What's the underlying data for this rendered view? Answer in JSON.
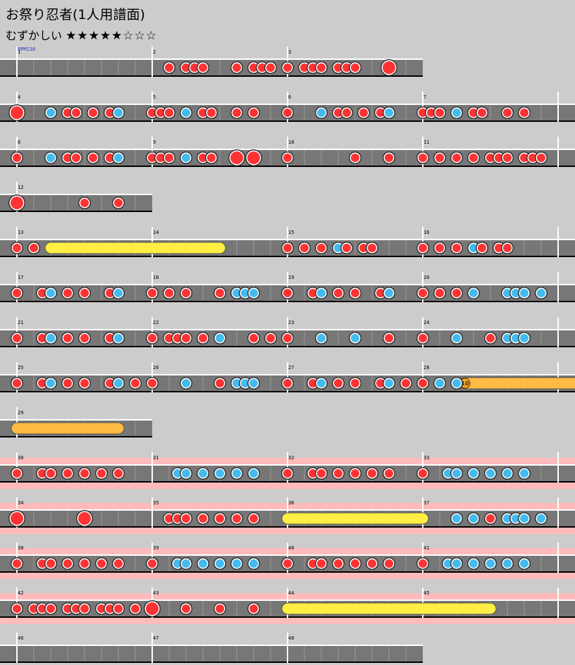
{
  "title": "お祭り忍者(1人用譜面)",
  "difficulty": {
    "label": "むずかしい",
    "stars": "★★★★★☆☆☆"
  },
  "bpm_label": "BPM130",
  "colors": {
    "don": "#ff3333",
    "ka": "#44bbee",
    "roll": "#ffee44",
    "balloon": "#ffbb44",
    "gogo": "#ffbbbb",
    "lane": "#777777"
  },
  "rows": [
    {
      "measures": [
        1,
        2,
        3
      ],
      "gogo": false,
      "notes": [
        [
          2,
          1,
          "d"
        ],
        [
          2,
          2,
          "d"
        ],
        [
          2,
          2.5,
          "d"
        ],
        [
          2,
          3,
          "d"
        ],
        [
          2,
          5,
          "d"
        ],
        [
          2,
          6,
          "d"
        ],
        [
          2,
          6.5,
          "d"
        ],
        [
          2,
          7,
          "d"
        ],
        [
          3,
          0,
          "d"
        ],
        [
          3,
          1,
          "d"
        ],
        [
          3,
          1.5,
          "d"
        ],
        [
          3,
          2,
          "d"
        ],
        [
          3,
          3,
          "d"
        ],
        [
          3,
          3.5,
          "d"
        ],
        [
          3,
          4,
          "d"
        ],
        [
          3,
          6,
          "D"
        ]
      ]
    },
    {
      "measures": [
        4,
        5,
        6,
        7
      ],
      "gogo": false,
      "notes": [
        [
          4,
          0,
          "D"
        ],
        [
          4,
          2,
          "k"
        ],
        [
          4,
          3,
          "d"
        ],
        [
          4,
          3.5,
          "d"
        ],
        [
          4,
          4.5,
          "d"
        ],
        [
          4,
          5.5,
          "d"
        ],
        [
          4,
          6,
          "k"
        ],
        [
          5,
          0,
          "d"
        ],
        [
          5,
          0.5,
          "d"
        ],
        [
          5,
          1,
          "d"
        ],
        [
          5,
          2,
          "k"
        ],
        [
          5,
          3,
          "d"
        ],
        [
          5,
          3.5,
          "d"
        ],
        [
          5,
          5,
          "d"
        ],
        [
          5,
          6,
          "d"
        ],
        [
          6,
          0,
          "d"
        ],
        [
          6,
          2,
          "k"
        ],
        [
          6,
          3,
          "d"
        ],
        [
          6,
          3.5,
          "d"
        ],
        [
          6,
          4.5,
          "d"
        ],
        [
          6,
          5.5,
          "d"
        ],
        [
          6,
          6,
          "k"
        ],
        [
          7,
          0,
          "d"
        ],
        [
          7,
          0.5,
          "d"
        ],
        [
          7,
          1,
          "d"
        ],
        [
          7,
          2,
          "k"
        ],
        [
          7,
          3,
          "d"
        ],
        [
          7,
          3.5,
          "d"
        ],
        [
          7,
          5,
          "d"
        ],
        [
          7,
          6,
          "d"
        ]
      ]
    },
    {
      "measures": [
        8,
        9,
        10,
        11
      ],
      "gogo": false,
      "notes": [
        [
          8,
          0,
          "d"
        ],
        [
          8,
          2,
          "k"
        ],
        [
          8,
          3,
          "d"
        ],
        [
          8,
          3.5,
          "d"
        ],
        [
          8,
          4.5,
          "d"
        ],
        [
          8,
          5.5,
          "d"
        ],
        [
          8,
          6,
          "k"
        ],
        [
          9,
          0,
          "d"
        ],
        [
          9,
          0.5,
          "d"
        ],
        [
          9,
          1,
          "d"
        ],
        [
          9,
          2,
          "k"
        ],
        [
          9,
          3,
          "d"
        ],
        [
          9,
          3.5,
          "d"
        ],
        [
          9,
          5,
          "D"
        ],
        [
          9,
          6,
          "D"
        ],
        [
          10,
          0,
          "d"
        ],
        [
          10,
          4,
          "d"
        ],
        [
          10,
          6,
          "d"
        ],
        [
          11,
          0,
          "d"
        ],
        [
          11,
          1,
          "d"
        ],
        [
          11,
          2,
          "d"
        ],
        [
          11,
          3,
          "d"
        ],
        [
          11,
          4,
          "d"
        ],
        [
          11,
          4.5,
          "d"
        ],
        [
          11,
          5,
          "d"
        ],
        [
          11,
          6,
          "d"
        ],
        [
          11,
          6.5,
          "d"
        ],
        [
          11,
          7,
          "d"
        ]
      ]
    },
    {
      "measures": [
        12
      ],
      "gogo": false,
      "notes": [
        [
          12,
          0,
          "D"
        ],
        [
          12,
          4,
          "d"
        ],
        [
          12,
          6,
          "d"
        ]
      ]
    },
    {
      "measures": [
        13,
        14,
        15,
        16
      ],
      "gogo": false,
      "rolls": [
        [
          "roll",
          13,
          2,
          14,
          4
        ]
      ],
      "notes": [
        [
          13,
          0,
          "d"
        ],
        [
          13,
          1,
          "d"
        ],
        [
          15,
          0,
          "d"
        ],
        [
          15,
          1,
          "d"
        ],
        [
          15,
          2,
          "d"
        ],
        [
          15,
          3,
          "k"
        ],
        [
          15,
          3.5,
          "d"
        ],
        [
          15,
          4.5,
          "d"
        ],
        [
          15,
          5,
          "d"
        ],
        [
          16,
          0,
          "d"
        ],
        [
          16,
          1,
          "d"
        ],
        [
          16,
          2,
          "d"
        ],
        [
          16,
          3,
          "k"
        ],
        [
          16,
          3.5,
          "d"
        ],
        [
          16,
          4.5,
          "d"
        ],
        [
          16,
          5,
          "d"
        ]
      ]
    },
    {
      "measures": [
        17,
        18,
        19,
        20
      ],
      "gogo": false,
      "notes": [
        [
          17,
          0,
          "d"
        ],
        [
          17,
          1.5,
          "d"
        ],
        [
          17,
          2,
          "k"
        ],
        [
          17,
          3,
          "d"
        ],
        [
          17,
          4,
          "d"
        ],
        [
          17,
          5.5,
          "d"
        ],
        [
          17,
          6,
          "k"
        ],
        [
          18,
          0,
          "d"
        ],
        [
          18,
          1,
          "d"
        ],
        [
          18,
          2,
          "d"
        ],
        [
          18,
          4,
          "d"
        ],
        [
          18,
          5,
          "k"
        ],
        [
          18,
          5.5,
          "k"
        ],
        [
          18,
          6,
          "k"
        ],
        [
          19,
          0,
          "d"
        ],
        [
          19,
          1.5,
          "d"
        ],
        [
          19,
          2,
          "k"
        ],
        [
          19,
          3,
          "d"
        ],
        [
          19,
          4,
          "d"
        ],
        [
          19,
          5.5,
          "d"
        ],
        [
          19,
          6,
          "k"
        ],
        [
          20,
          0,
          "d"
        ],
        [
          20,
          1,
          "d"
        ],
        [
          20,
          2,
          "d"
        ],
        [
          20,
          3,
          "k"
        ],
        [
          20,
          5,
          "k"
        ],
        [
          20,
          5.5,
          "k"
        ],
        [
          20,
          6,
          "k"
        ],
        [
          20,
          7,
          "k"
        ]
      ]
    },
    {
      "measures": [
        21,
        22,
        23,
        24
      ],
      "gogo": false,
      "notes": [
        [
          21,
          0,
          "d"
        ],
        [
          21,
          1.5,
          "d"
        ],
        [
          21,
          2,
          "k"
        ],
        [
          21,
          3,
          "d"
        ],
        [
          21,
          4,
          "d"
        ],
        [
          21,
          5.5,
          "d"
        ],
        [
          21,
          6,
          "k"
        ],
        [
          22,
          0,
          "d"
        ],
        [
          22,
          1,
          "d"
        ],
        [
          22,
          1.5,
          "d"
        ],
        [
          22,
          2,
          "d"
        ],
        [
          22,
          3,
          "d"
        ],
        [
          22,
          4,
          "k"
        ],
        [
          22,
          6,
          "d"
        ],
        [
          22,
          7,
          "d"
        ],
        [
          23,
          0,
          "d"
        ],
        [
          23,
          2,
          "k"
        ],
        [
          23,
          4,
          "k"
        ],
        [
          23,
          6,
          "d"
        ],
        [
          24,
          0,
          "d"
        ],
        [
          24,
          2,
          "k"
        ],
        [
          24,
          4,
          "d"
        ],
        [
          24,
          5,
          "k"
        ],
        [
          24,
          5.5,
          "k"
        ],
        [
          24,
          6,
          "k"
        ]
      ]
    },
    {
      "measures": [
        25,
        26,
        27,
        28
      ],
      "gogo": false,
      "rolls": [
        [
          "balloon",
          28,
          2.5,
          29,
          0,
          "10"
        ]
      ],
      "notes": [
        [
          25,
          0,
          "d"
        ],
        [
          25,
          1.5,
          "d"
        ],
        [
          25,
          2,
          "k"
        ],
        [
          25,
          3,
          "d"
        ],
        [
          25,
          4,
          "d"
        ],
        [
          25,
          5.5,
          "d"
        ],
        [
          25,
          6,
          "k"
        ],
        [
          25,
          7,
          "d"
        ],
        [
          26,
          0,
          "d"
        ],
        [
          26,
          2,
          "k"
        ],
        [
          26,
          4,
          "d"
        ],
        [
          26,
          5,
          "k"
        ],
        [
          26,
          5.5,
          "k"
        ],
        [
          26,
          6,
          "k"
        ],
        [
          27,
          0,
          "d"
        ],
        [
          27,
          1.5,
          "d"
        ],
        [
          27,
          2,
          "k"
        ],
        [
          27,
          3,
          "d"
        ],
        [
          27,
          4,
          "d"
        ],
        [
          27,
          5.5,
          "d"
        ],
        [
          27,
          6,
          "k"
        ],
        [
          27,
          7,
          "d"
        ],
        [
          28,
          0,
          "d"
        ],
        [
          28,
          1,
          "k"
        ],
        [
          28,
          2,
          "k"
        ]
      ]
    },
    {
      "measures": [
        29
      ],
      "gogo": false,
      "rolls": [
        [
          "balloon",
          29,
          0,
          29,
          6
        ]
      ],
      "notes": []
    },
    {
      "measures": [
        30,
        31,
        32,
        33
      ],
      "gogo": true,
      "notes": [
        [
          30,
          0,
          "d"
        ],
        [
          30,
          1.5,
          "d"
        ],
        [
          30,
          2,
          "d"
        ],
        [
          30,
          3,
          "d"
        ],
        [
          30,
          4,
          "d"
        ],
        [
          30,
          5,
          "d"
        ],
        [
          30,
          6,
          "d"
        ],
        [
          31,
          1.5,
          "k"
        ],
        [
          31,
          2,
          "k"
        ],
        [
          31,
          3,
          "k"
        ],
        [
          31,
          4,
          "k"
        ],
        [
          31,
          5,
          "k"
        ],
        [
          31,
          6,
          "k"
        ],
        [
          32,
          0,
          "d"
        ],
        [
          32,
          1.5,
          "d"
        ],
        [
          32,
          2,
          "d"
        ],
        [
          32,
          3,
          "d"
        ],
        [
          32,
          4,
          "d"
        ],
        [
          32,
          5,
          "d"
        ],
        [
          32,
          6,
          "d"
        ],
        [
          33,
          0,
          "d"
        ],
        [
          33,
          1.5,
          "k"
        ],
        [
          33,
          2,
          "k"
        ],
        [
          33,
          3,
          "k"
        ],
        [
          33,
          4,
          "k"
        ],
        [
          33,
          5,
          "k"
        ],
        [
          33,
          6,
          "k"
        ]
      ]
    },
    {
      "measures": [
        34,
        35,
        36,
        37
      ],
      "gogo": true,
      "rolls": [
        [
          "roll",
          36,
          0,
          36,
          8
        ]
      ],
      "notes": [
        [
          34,
          0,
          "D"
        ],
        [
          34,
          4,
          "D"
        ],
        [
          35,
          1,
          "d"
        ],
        [
          35,
          1.5,
          "d"
        ],
        [
          35,
          2,
          "d"
        ],
        [
          35,
          3,
          "d"
        ],
        [
          35,
          4,
          "d"
        ],
        [
          35,
          5,
          "d"
        ],
        [
          35,
          6,
          "d"
        ],
        [
          37,
          2,
          "k"
        ],
        [
          37,
          3,
          "k"
        ],
        [
          37,
          4,
          "d"
        ],
        [
          37,
          5,
          "k"
        ],
        [
          37,
          5.5,
          "k"
        ],
        [
          37,
          6,
          "k"
        ],
        [
          37,
          7,
          "k"
        ]
      ]
    },
    {
      "measures": [
        38,
        39,
        40,
        41
      ],
      "gogo": true,
      "notes": [
        [
          38,
          0,
          "d"
        ],
        [
          38,
          1.5,
          "d"
        ],
        [
          38,
          2,
          "d"
        ],
        [
          38,
          3,
          "d"
        ],
        [
          38,
          4,
          "d"
        ],
        [
          38,
          5,
          "d"
        ],
        [
          38,
          6,
          "d"
        ],
        [
          39,
          0,
          "d"
        ],
        [
          39,
          1.5,
          "k"
        ],
        [
          39,
          2,
          "k"
        ],
        [
          39,
          3,
          "k"
        ],
        [
          39,
          4,
          "k"
        ],
        [
          39,
          5,
          "k"
        ],
        [
          39,
          6,
          "k"
        ],
        [
          40,
          0,
          "d"
        ],
        [
          40,
          1.5,
          "d"
        ],
        [
          40,
          2,
          "d"
        ],
        [
          40,
          3,
          "d"
        ],
        [
          40,
          4,
          "d"
        ],
        [
          40,
          5,
          "d"
        ],
        [
          40,
          6,
          "d"
        ],
        [
          41,
          0,
          "d"
        ],
        [
          41,
          1.5,
          "k"
        ],
        [
          41,
          2,
          "k"
        ],
        [
          41,
          3,
          "k"
        ],
        [
          41,
          4,
          "k"
        ],
        [
          41,
          5,
          "k"
        ],
        [
          41,
          6,
          "k"
        ]
      ]
    },
    {
      "measures": [
        42,
        43,
        44,
        45
      ],
      "gogo": true,
      "rolls": [
        [
          "roll",
          44,
          0,
          45,
          4
        ]
      ],
      "notes": [
        [
          42,
          0,
          "d"
        ],
        [
          42,
          1,
          "d"
        ],
        [
          42,
          1.5,
          "d"
        ],
        [
          42,
          2,
          "d"
        ],
        [
          42,
          3,
          "d"
        ],
        [
          42,
          3.5,
          "d"
        ],
        [
          42,
          4,
          "d"
        ],
        [
          42,
          5,
          "d"
        ],
        [
          42,
          5.5,
          "d"
        ],
        [
          42,
          6,
          "d"
        ],
        [
          42,
          7,
          "d"
        ],
        [
          43,
          0,
          "D"
        ],
        [
          43,
          2,
          "d"
        ],
        [
          43,
          4,
          "d"
        ],
        [
          43,
          6,
          "d"
        ]
      ]
    },
    {
      "measures": [
        46,
        47,
        48
      ],
      "gogo": false,
      "notes": []
    }
  ]
}
